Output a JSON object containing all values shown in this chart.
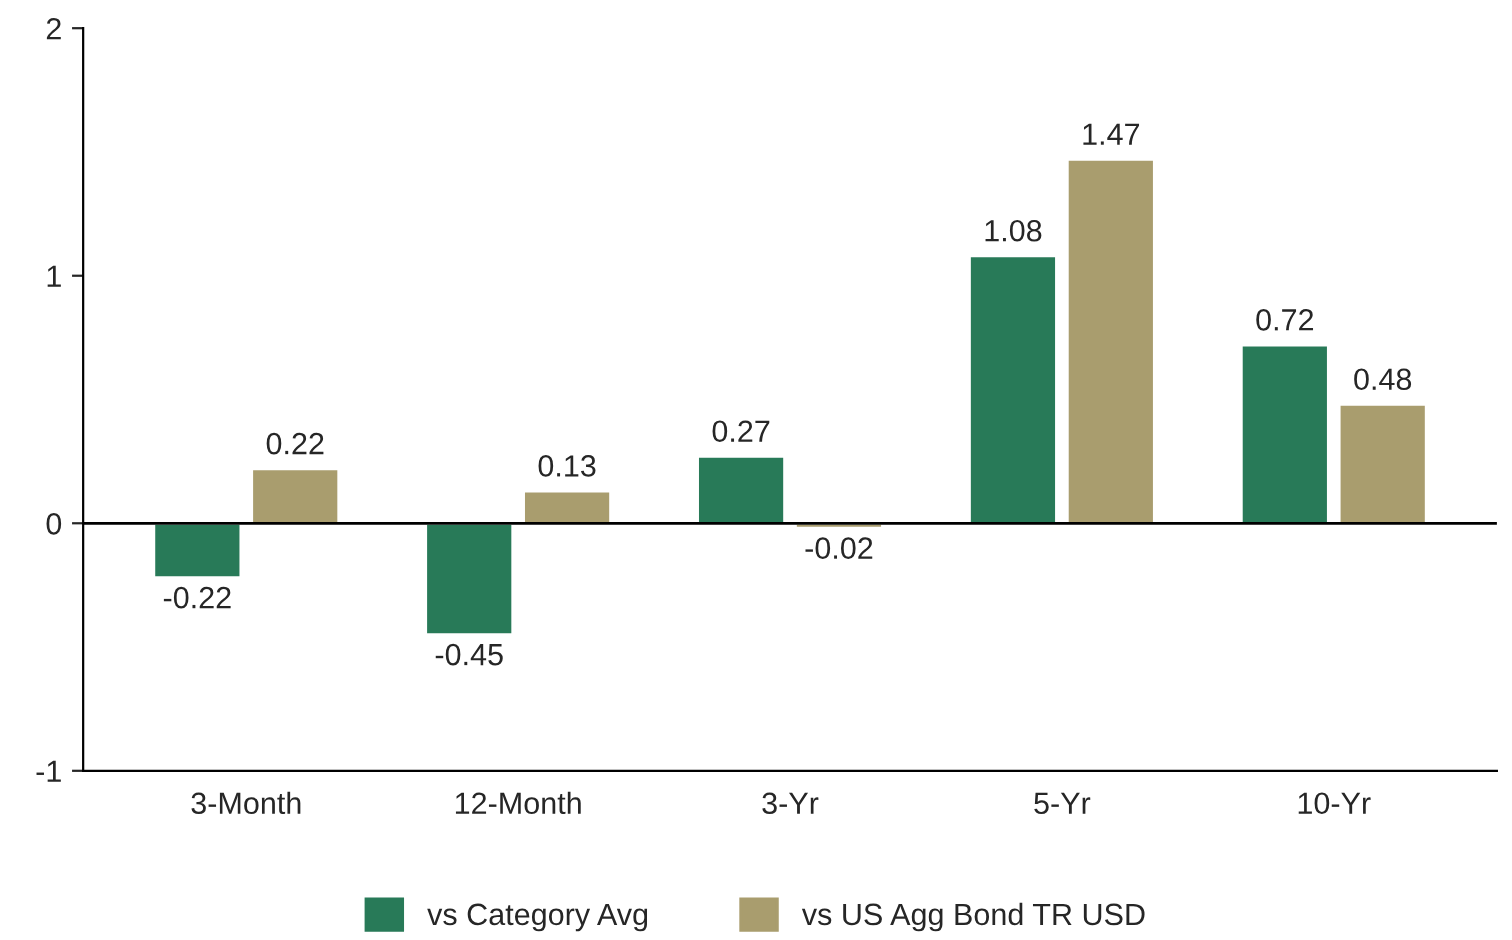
{
  "chart_data": {
    "type": "bar",
    "categories": [
      "3-Month",
      "12-Month",
      "3-Yr",
      "5-Yr",
      "10-Yr"
    ],
    "series": [
      {
        "name": "vs Category Avg",
        "color": "#287a58",
        "values": [
          -0.22,
          -0.45,
          0.27,
          1.08,
          0.72
        ]
      },
      {
        "name": "vs US Agg Bond TR USD",
        "color": "#a99d6e",
        "values": [
          0.22,
          0.13,
          -0.02,
          1.47,
          0.48
        ]
      }
    ],
    "ylim": [
      -1,
      2
    ],
    "yticks": [
      {
        "value": -1,
        "label": "-1"
      },
      0,
      1,
      2
    ],
    "ref_lines": [
      {
        "axis": "y",
        "value": 0,
        "color": "#000000"
      }
    ],
    "data_labels": true,
    "grid": false,
    "legend": "bottom"
  }
}
